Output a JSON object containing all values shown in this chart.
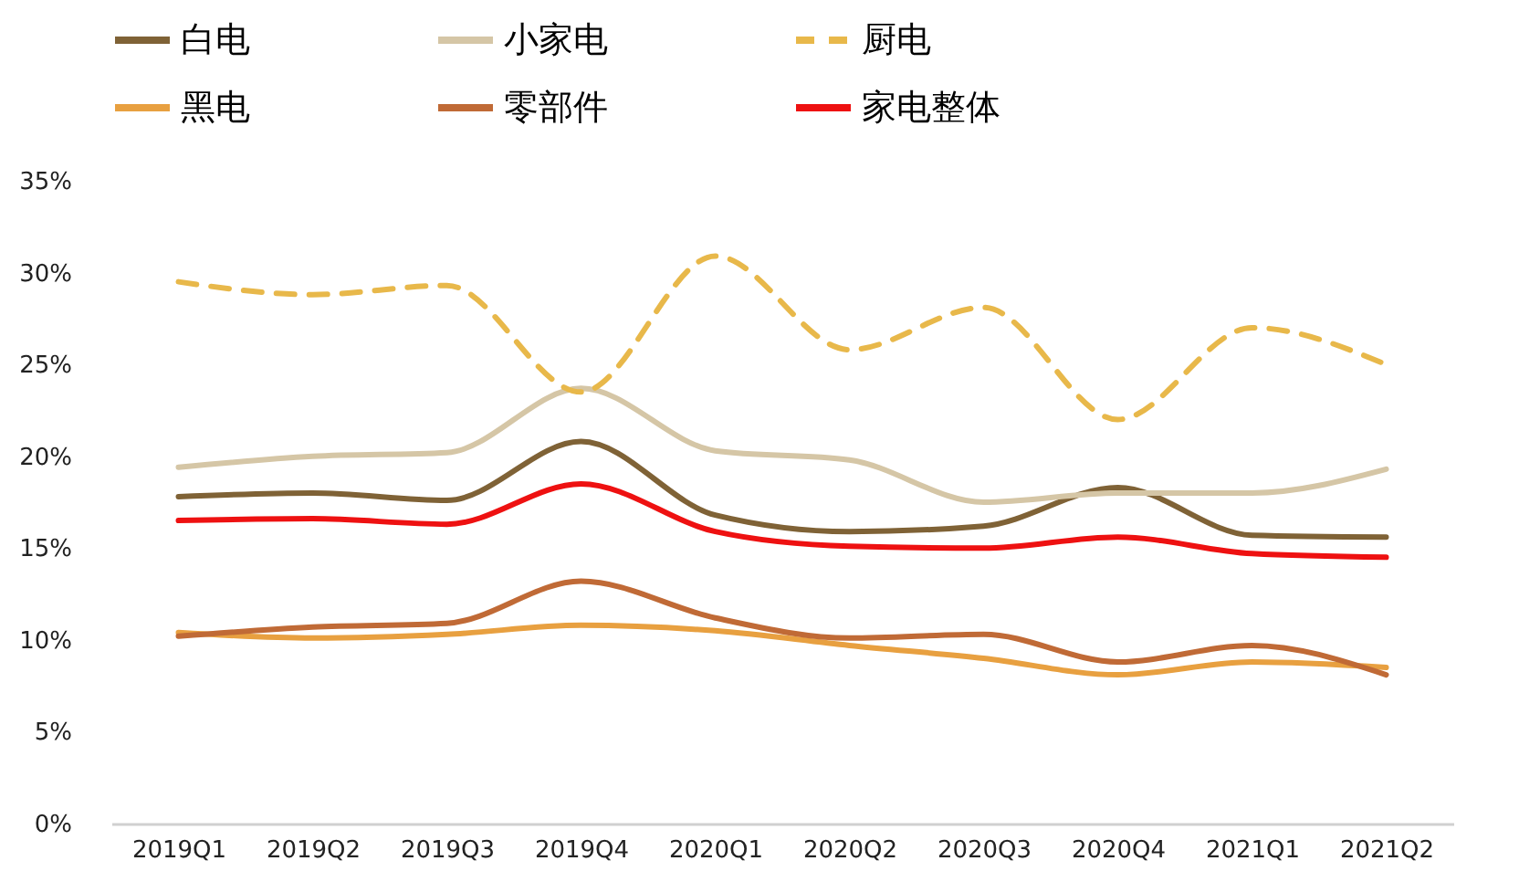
{
  "chart_data": {
    "type": "line",
    "categories": [
      "2019Q1",
      "2019Q2",
      "2019Q3",
      "2019Q4",
      "2020Q1",
      "2020Q2",
      "2020Q3",
      "2020Q4",
      "2021Q1",
      "2021Q2"
    ],
    "ylim": [
      0,
      35
    ],
    "yticks": [
      {
        "value": 0,
        "label": "0%"
      },
      {
        "value": 5,
        "label": "5%"
      },
      {
        "value": 10,
        "label": "10%"
      },
      {
        "value": 15,
        "label": "15%"
      },
      {
        "value": 20,
        "label": "20%"
      },
      {
        "value": 25,
        "label": "25%"
      },
      {
        "value": 30,
        "label": "30%"
      },
      {
        "value": 35,
        "label": "35%"
      }
    ],
    "grid": false,
    "legend": "top",
    "series": [
      {
        "name": "白电",
        "color": "#7f6236",
        "line_style": "solid",
        "values": [
          17.8,
          18.0,
          17.6,
          20.8,
          16.8,
          15.9,
          16.2,
          18.3,
          15.7,
          15.6
        ]
      },
      {
        "name": "小家电",
        "color": "#d5c6a6",
        "line_style": "solid",
        "values": [
          19.4,
          20.0,
          20.2,
          23.7,
          20.3,
          19.8,
          17.5,
          18.0,
          18.0,
          19.3
        ]
      },
      {
        "name": "厨电",
        "color": "#e8b84a",
        "line_style": "dashed",
        "values": [
          29.5,
          28.8,
          29.3,
          23.5,
          30.9,
          25.8,
          28.1,
          22.0,
          27.0,
          25.0
        ]
      },
      {
        "name": "黑电",
        "color": "#e8a040",
        "line_style": "solid",
        "values": [
          10.4,
          10.1,
          10.3,
          10.8,
          10.5,
          9.7,
          9.0,
          8.1,
          8.8,
          8.5
        ]
      },
      {
        "name": "零部件",
        "color": "#c06a36",
        "line_style": "solid",
        "values": [
          10.2,
          10.7,
          10.9,
          13.2,
          11.2,
          10.1,
          10.3,
          8.8,
          9.7,
          8.1
        ]
      },
      {
        "name": "家电整体",
        "color": "#ee1111",
        "line_style": "solid",
        "values": [
          16.5,
          16.6,
          16.3,
          18.5,
          15.9,
          15.1,
          15.0,
          15.6,
          14.7,
          14.5
        ]
      }
    ]
  }
}
